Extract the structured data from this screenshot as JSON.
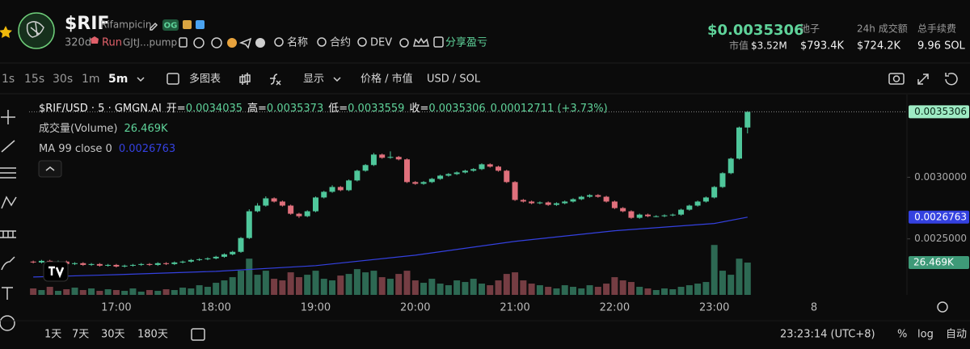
{
  "header": {
    "symbol": "$RIF",
    "name": "Rifampicin",
    "badge": "OG",
    "age": "320d",
    "status": "Run",
    "address": "GJtJ...pump",
    "links": [
      "名称",
      "合约",
      "DEV"
    ],
    "share": "分享盈亏",
    "price": "$0.0035306",
    "mcap_label": "市值",
    "mcap": "$3.52M",
    "stats": [
      {
        "label": "池子",
        "value": "$793.4K"
      },
      {
        "label": "24h 成交额",
        "value": "$724.2K"
      },
      {
        "label": "总手续费",
        "value": "9.96 SOL"
      }
    ]
  },
  "toolbar": {
    "intervals": [
      "1s",
      "15s",
      "30s",
      "1m",
      "5m"
    ],
    "multi": "多图表",
    "display": "显示",
    "price_toggle": "价格 / 市值",
    "currency_toggle": "USD / SOL"
  },
  "chart_data": {
    "type": "candlestick",
    "title": "$RIF/USD · 5 · GMGN.AI",
    "ohlc_labels": [
      "开=",
      "高=",
      "低=",
      "收="
    ],
    "change": "0.00012711 (+3.73%)",
    "up_color": "#4fc79b",
    "down_color": "#e0707c",
    "open": [
      0.002316,
      0.002309,
      0.002322,
      0.002303,
      0.002316,
      0.002296,
      0.002303,
      0.002289,
      0.002296,
      0.002283,
      0.002289,
      0.002276,
      0.002283,
      0.002289,
      0.002296,
      0.002289,
      0.002303,
      0.002296,
      0.002309,
      0.002316,
      0.002329,
      0.002335,
      0.002342,
      0.002355,
      0.002375,
      0.002395,
      0.002507,
      0.002724,
      0.00277,
      0.002829,
      0.002803,
      0.00277,
      0.002704,
      0.002684,
      0.002724,
      0.002836,
      0.002882,
      0.002921,
      0.002895,
      0.002974,
      0.003053,
      0.003099,
      0.003184,
      0.003158,
      0.003165,
      0.003145,
      0.002961,
      0.002947,
      0.002961,
      0.002987,
      0.003013,
      0.003026,
      0.003039,
      0.003053,
      0.003066,
      0.003105,
      0.003086,
      0.003053,
      0.002961,
      0.002816,
      0.002803,
      0.002789,
      0.002796,
      0.002776,
      0.002789,
      0.002803,
      0.002822,
      0.002842,
      0.002855,
      0.002842,
      0.002803,
      0.00275,
      0.002724,
      0.002671,
      0.002697,
      0.002684,
      0.002684,
      0.002691,
      0.002697,
      0.002737,
      0.00277,
      0.002803,
      0.002836,
      0.002921,
      0.003033,
      0.003151,
      0.0034035
    ],
    "high": [
      0.002324,
      0.00233,
      0.00233,
      0.002324,
      0.002324,
      0.002311,
      0.002311,
      0.002304,
      0.002304,
      0.002297,
      0.002297,
      0.002291,
      0.002297,
      0.002304,
      0.002304,
      0.002311,
      0.002311,
      0.002317,
      0.002324,
      0.002337,
      0.002343,
      0.00235,
      0.002363,
      0.002383,
      0.002403,
      0.002515,
      0.00274,
      0.00279,
      0.002845,
      0.002837,
      0.002811,
      0.002778,
      0.002712,
      0.002732,
      0.002844,
      0.00289,
      0.002935,
      0.002929,
      0.002982,
      0.003061,
      0.003107,
      0.003197,
      0.003192,
      0.00321,
      0.003173,
      0.003153,
      0.002969,
      0.002969,
      0.002995,
      0.003021,
      0.003034,
      0.003047,
      0.003061,
      0.003074,
      0.003113,
      0.003113,
      0.003094,
      0.003061,
      0.002969,
      0.002824,
      0.002811,
      0.002804,
      0.002804,
      0.002797,
      0.002811,
      0.00283,
      0.00285,
      0.002863,
      0.002863,
      0.00285,
      0.002811,
      0.002758,
      0.002732,
      0.002705,
      0.002705,
      0.002692,
      0.002699,
      0.002705,
      0.002745,
      0.002778,
      0.002811,
      0.002844,
      0.002929,
      0.003041,
      0.003159,
      0.003411,
      0.0035373
    ],
    "low": [
      0.002301,
      0.002301,
      0.002295,
      0.002295,
      0.002288,
      0.002288,
      0.002281,
      0.002281,
      0.002275,
      0.002275,
      0.002268,
      0.002268,
      0.002275,
      0.002281,
      0.002281,
      0.002281,
      0.002288,
      0.002288,
      0.002301,
      0.002308,
      0.002321,
      0.002327,
      0.002334,
      0.002347,
      0.002367,
      0.002387,
      0.002499,
      0.002716,
      0.002762,
      0.002795,
      0.002762,
      0.002696,
      0.00267,
      0.002676,
      0.002716,
      0.002828,
      0.002874,
      0.002887,
      0.002887,
      0.002966,
      0.003045,
      0.003091,
      0.00315,
      0.00315,
      0.003137,
      0.002953,
      0.002939,
      0.002939,
      0.002953,
      0.002979,
      0.003005,
      0.003018,
      0.003031,
      0.003045,
      0.003058,
      0.003078,
      0.003045,
      0.002953,
      0.002808,
      0.002795,
      0.002781,
      0.002781,
      0.002768,
      0.002768,
      0.002781,
      0.002795,
      0.002814,
      0.002834,
      0.002834,
      0.002795,
      0.002742,
      0.002716,
      0.002663,
      0.002663,
      0.002676,
      0.002676,
      0.002676,
      0.002683,
      0.002689,
      0.002729,
      0.002762,
      0.002795,
      0.002828,
      0.002913,
      0.003025,
      0.003143,
      0.0033559
    ],
    "close": [
      0.002309,
      0.002322,
      0.002303,
      0.002316,
      0.002296,
      0.002303,
      0.002289,
      0.002296,
      0.002283,
      0.002289,
      0.002276,
      0.002283,
      0.002289,
      0.002296,
      0.002289,
      0.002303,
      0.002296,
      0.002309,
      0.002316,
      0.002329,
      0.002335,
      0.002342,
      0.002355,
      0.002375,
      0.002395,
      0.002507,
      0.002724,
      0.00277,
      0.002829,
      0.002803,
      0.00277,
      0.002704,
      0.002684,
      0.002724,
      0.002836,
      0.002882,
      0.002921,
      0.002895,
      0.002974,
      0.003053,
      0.003099,
      0.003184,
      0.003158,
      0.003165,
      0.003145,
      0.002961,
      0.002947,
      0.002961,
      0.002987,
      0.003013,
      0.003026,
      0.003039,
      0.003053,
      0.003066,
      0.003105,
      0.003086,
      0.003053,
      0.002961,
      0.002816,
      0.002803,
      0.002789,
      0.002796,
      0.002776,
      0.002789,
      0.002803,
      0.002822,
      0.002842,
      0.002855,
      0.002842,
      0.002803,
      0.00275,
      0.002724,
      0.002671,
      0.002697,
      0.002684,
      0.002684,
      0.002691,
      0.002697,
      0.002737,
      0.00277,
      0.002803,
      0.002836,
      0.002921,
      0.003033,
      0.003151,
      0.0034035,
      0.0035306
    ],
    "volume": {
      "name": "成交量(Volume)",
      "last_label": "26.469K",
      "ylim": [
        0,
        100000
      ],
      "values": [
        5280,
        3960,
        6600,
        3300,
        4620,
        5940,
        3960,
        5280,
        3300,
        4620,
        3960,
        3300,
        5280,
        2640,
        3960,
        3300,
        4620,
        3960,
        5940,
        5280,
        7920,
        6600,
        9900,
        11880,
        14520,
        19800,
        29700,
        16500,
        19800,
        13200,
        11880,
        18480,
        14520,
        16500,
        19800,
        13200,
        11880,
        15840,
        17160,
        21120,
        18480,
        19800,
        14520,
        13200,
        17160,
        19800,
        11880,
        9900,
        13200,
        9240,
        7920,
        11880,
        10560,
        13200,
        9240,
        7920,
        11880,
        17160,
        18480,
        11880,
        9240,
        7920,
        6600,
        5280,
        7920,
        6600,
        5280,
        7920,
        6600,
        9240,
        14520,
        11880,
        10560,
        6600,
        5280,
        3960,
        5280,
        4620,
        6600,
        7920,
        9240,
        10560,
        40920,
        19800,
        16500,
        29700,
        26469
      ]
    },
    "ma": {
      "name": "MA 99 close 0",
      "color": "#3441e0",
      "x": [
        0,
        10,
        22,
        34,
        46,
        58,
        70,
        82,
        86
      ],
      "values": [
        0.002191,
        0.00221,
        0.002237,
        0.002283,
        0.002368,
        0.00248,
        0.002566,
        0.002625,
        0.0026763
      ]
    },
    "xlim": [
      -0.5,
      105
    ],
    "ylim": [
      0.002046,
      0.003671
    ],
    "yticks": [
      {
        "value": 0.0025,
        "label": "0.0025000"
      },
      {
        "value": 0.003,
        "label": "0.0030000"
      }
    ],
    "xticks": [
      {
        "value": 10,
        "label": "17:00"
      },
      {
        "value": 22,
        "label": "18:00"
      },
      {
        "value": 34,
        "label": "19:00"
      },
      {
        "value": 46,
        "label": "20:00"
      },
      {
        "value": 58,
        "label": "21:00"
      },
      {
        "value": 70,
        "label": "22:00"
      },
      {
        "value": 82,
        "label": "23:00"
      },
      {
        "value": 94,
        "label": "8"
      }
    ]
  },
  "footer": {
    "ranges": [
      "1天",
      "7天",
      "30天",
      "180天"
    ],
    "time": "23:23:14 (UTC+8)",
    "options": [
      "%",
      "log",
      "自动"
    ]
  }
}
